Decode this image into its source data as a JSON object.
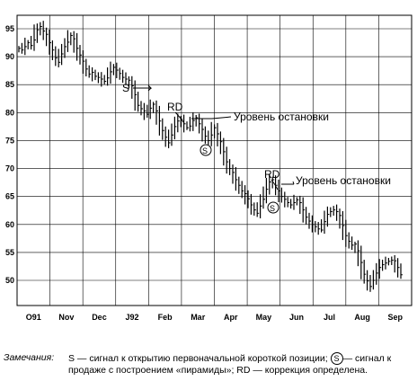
{
  "chart_data": {
    "type": "ohlc",
    "ylim": [
      45,
      97
    ],
    "y_ticks": [
      95,
      90,
      85,
      80,
      75,
      70,
      65,
      60,
      55,
      50
    ],
    "x_tick_labels": [
      "O91",
      "Nov",
      "Dec",
      "J92",
      "Feb",
      "Mar",
      "Apr",
      "May",
      "Jun",
      "Jul",
      "Aug",
      "Sep"
    ],
    "grid": true,
    "series": [
      {
        "values": [
          91.5,
          91.2,
          91.8,
          92.5,
          92.0,
          93.0,
          94.8,
          95.4,
          94.6,
          94.0,
          92.5,
          91.2,
          89.8,
          89.0,
          90.5,
          91.8,
          92.6,
          93.8,
          93.2,
          91.5,
          90.3,
          89.2,
          87.8,
          86.9,
          87.2,
          86.5,
          86.3,
          86.0,
          85.6,
          86.2,
          87.3,
          88.1,
          87.6,
          87.0,
          86.3,
          86.0,
          85.8,
          84.8,
          83.2,
          81.3,
          80.7,
          80.3,
          79.7,
          80.8,
          81.5,
          80.3,
          78.5,
          76.8,
          75.6,
          74.6,
          76.0,
          77.5,
          78.5,
          78.8,
          78.0,
          77.3,
          77.6,
          78.6,
          79.1,
          78.0,
          77.0,
          75.8,
          75.0,
          76.0,
          77.3,
          76.2,
          74.8,
          73.0,
          71.2,
          70.0,
          69.3,
          68.0,
          67.0,
          66.0,
          65.5,
          64.6,
          63.5,
          62.6,
          62.0,
          63.3,
          64.5,
          66.3,
          67.6,
          68.0,
          67.0,
          66.0,
          65.0,
          64.5,
          63.9,
          63.5,
          63.9,
          64.4,
          63.9,
          62.6,
          61.3,
          60.6,
          60.0,
          59.6,
          59.2,
          59.0,
          60.5,
          61.8,
          62.3,
          62.6,
          62.3,
          61.6,
          59.8,
          58.0,
          57.0,
          56.3,
          56.5,
          55.3,
          53.2,
          51.1,
          49.9,
          48.9,
          50.0,
          51.3,
          52.3,
          52.8,
          53.1,
          53.4,
          53.6,
          53.5,
          52.3,
          51.0
        ]
      }
    ],
    "annotations": {
      "rd_1": "RD",
      "rd_2": "RD",
      "stop_1": "Уровень остановки",
      "stop_2": "Уровень остановки",
      "s_short": "S",
      "s_pyramid_1": "S",
      "s_pyramid_2": "S"
    }
  },
  "footnote": {
    "label": "Замечания:",
    "text_1": "S — сигнал к открытию первоначальной короткой позиции; ",
    "circle_s": "S",
    "text_2": "— сигнал к продаже с построением «пирамиды»; RD — коррекция определена."
  }
}
